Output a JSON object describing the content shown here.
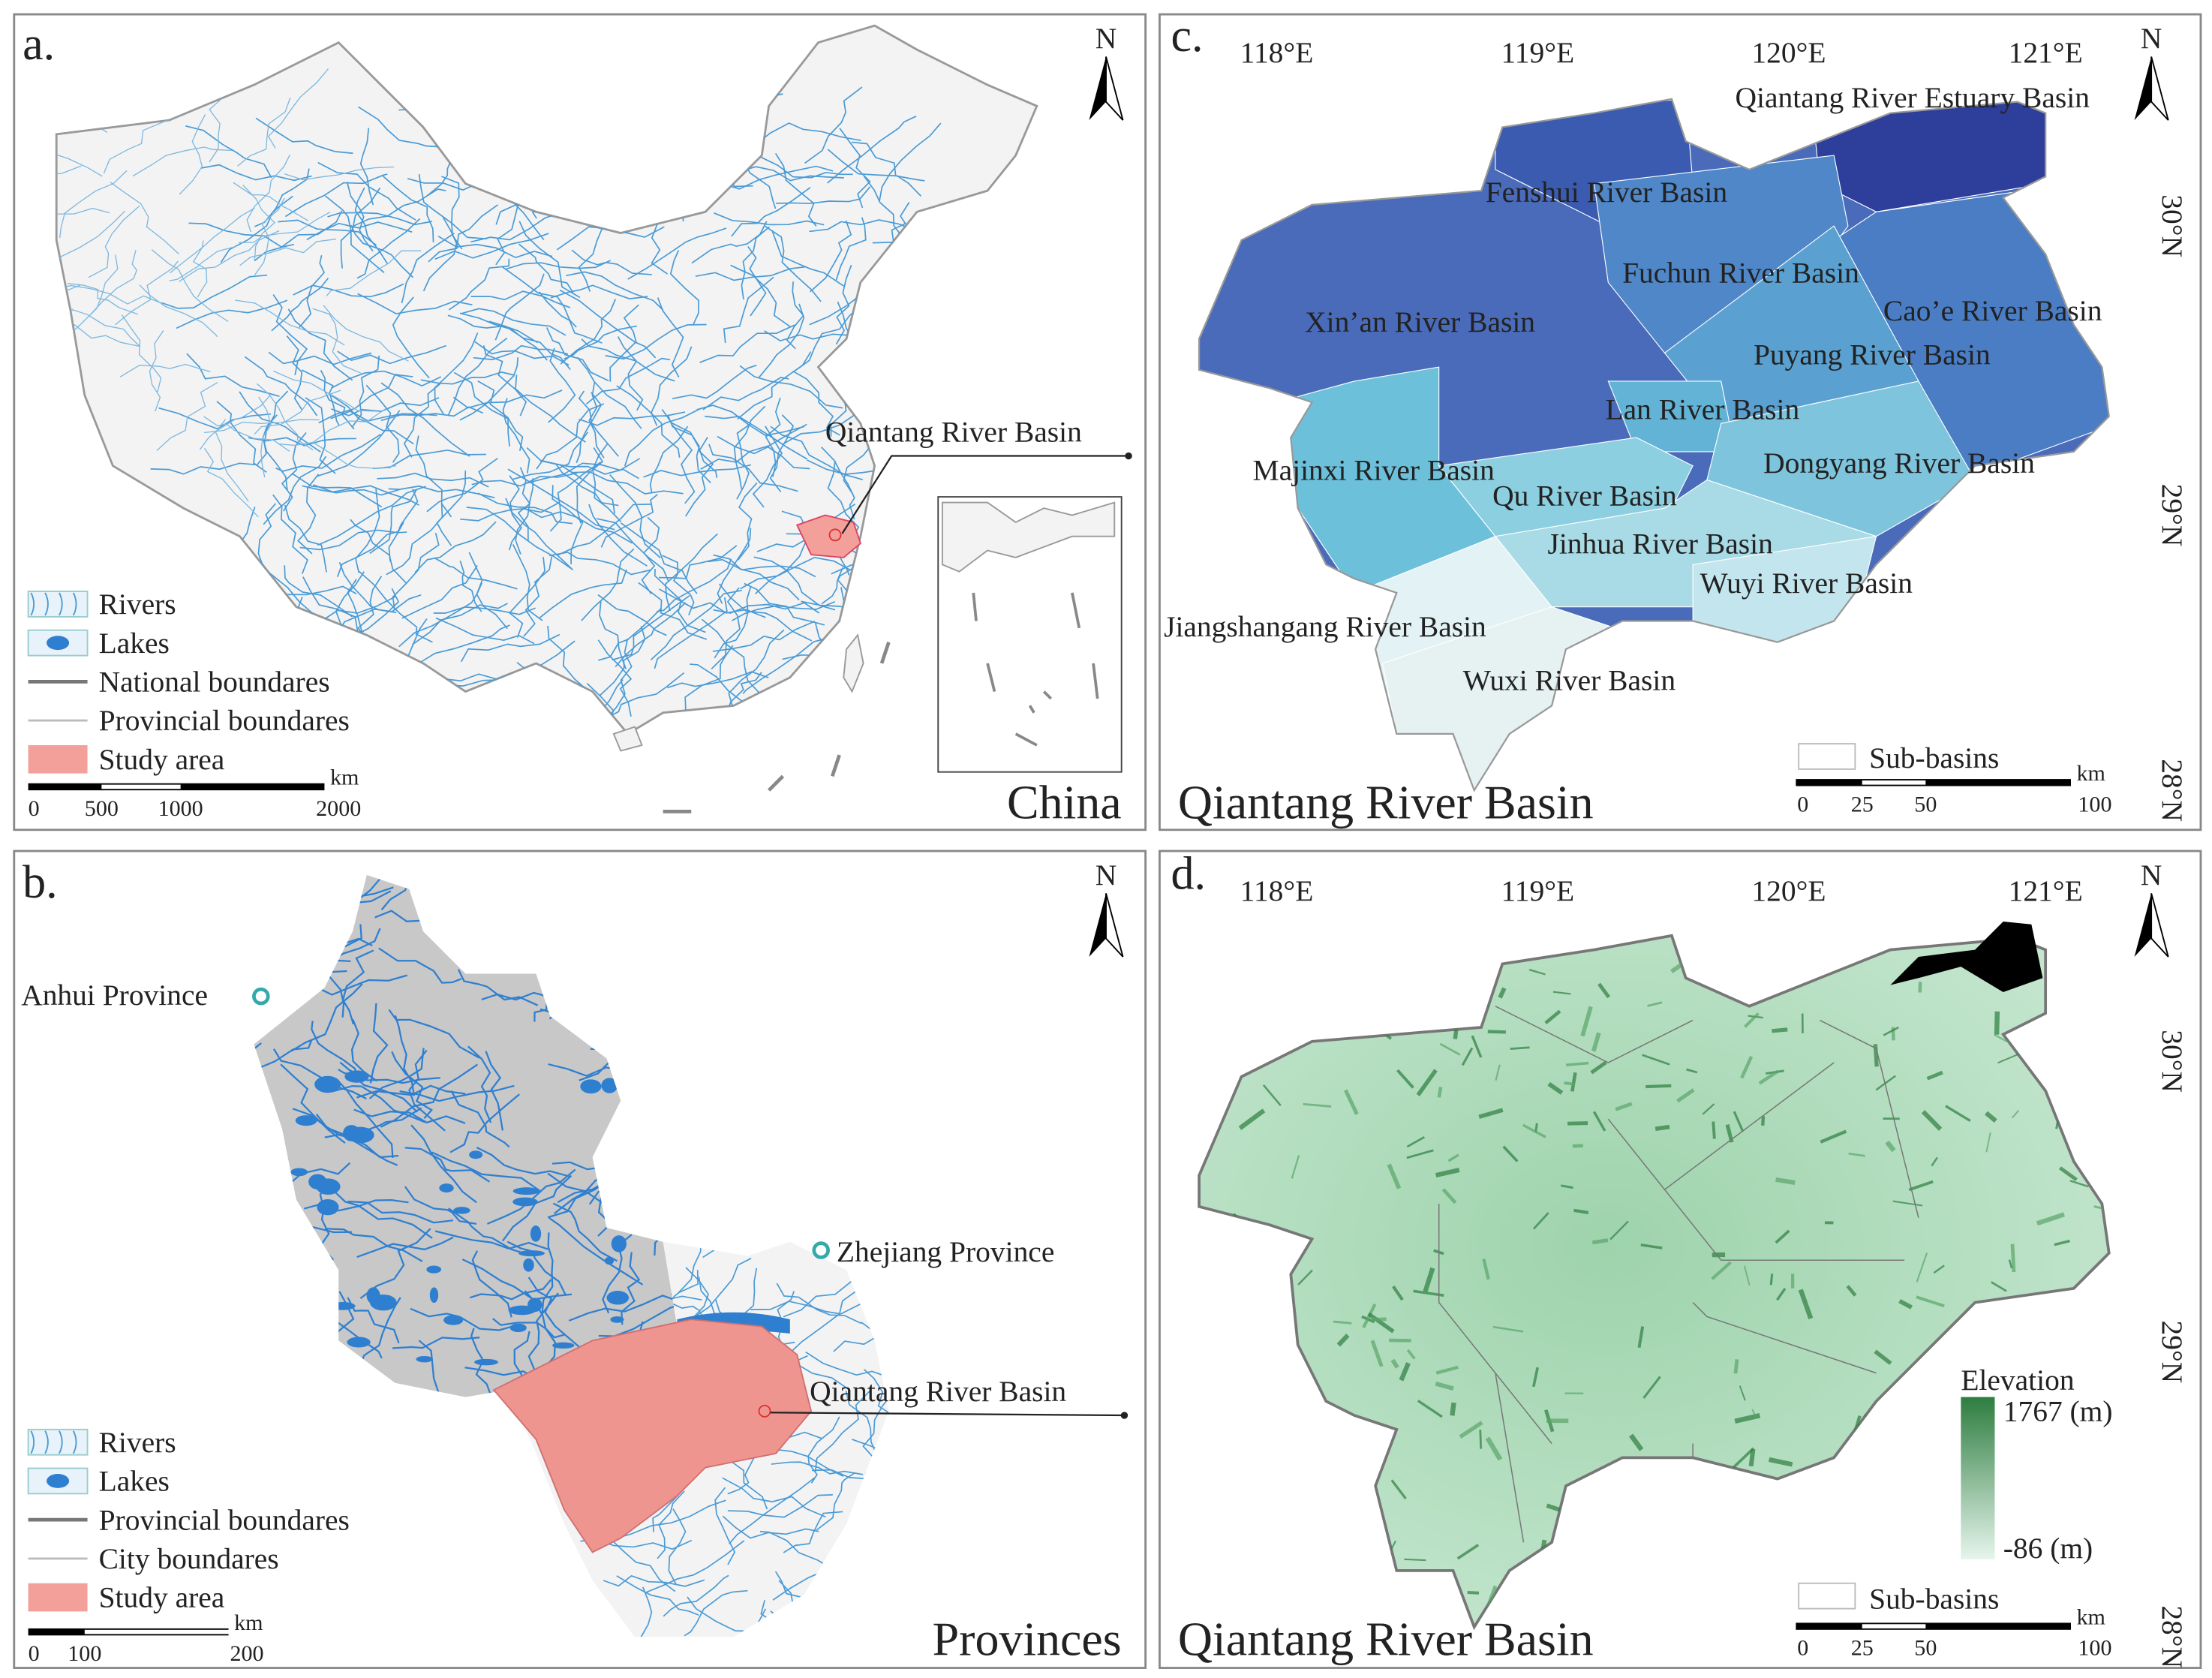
{
  "panels": {
    "a": {
      "label": "a.",
      "north": "N",
      "title": "China",
      "callout": "Qiantang River Basin",
      "legend": [
        "Rivers",
        "Lakes",
        "National boundares",
        "Provincial boundares",
        "Study area"
      ],
      "scale_bar": {
        "unit": "km",
        "ticks": [
          "0",
          "500",
          "1000",
          "2000"
        ]
      }
    },
    "b": {
      "label": "b.",
      "north": "N",
      "title": "Provinces",
      "places": [
        "Anhui Province",
        "Zhejiang Province"
      ],
      "callout": "Qiantang River Basin",
      "legend": [
        "Rivers",
        "Lakes",
        "Provincial boundares",
        "City boundares",
        "Study area"
      ],
      "scale_bar": {
        "unit": "km",
        "ticks": [
          "0",
          "100",
          "200"
        ]
      }
    },
    "c": {
      "label": "c.",
      "north": "N",
      "title": "Qiantang River Basin",
      "longitudes": [
        "118°E",
        "119°E",
        "120°E",
        "121°E"
      ],
      "latitudes": [
        "30°N",
        "29°N",
        "28°N"
      ],
      "sub_basins": [
        "Qiantang River Estuary Basin",
        "Fenshui River Basin",
        "Fuchun River Basin",
        "Cao’e River Basin",
        "Xin’an River Basin",
        "Puyang River Basin",
        "Lan River Basin",
        "Majinxi River Basin",
        "Dongyang River Basin",
        "Qu River Basin",
        "Jinhua River Basin",
        "Wuyi River Basin",
        "Jiangshangang River Basin",
        "Wuxi River Basin"
      ],
      "legend": [
        "Sub-basins"
      ],
      "scale_bar": {
        "unit": "km",
        "ticks": [
          "0",
          "25",
          "50",
          "100"
        ]
      }
    },
    "d": {
      "label": "d.",
      "north": "N",
      "title": "Qiantang River Basin",
      "longitudes": [
        "118°E",
        "119°E",
        "120°E",
        "121°E"
      ],
      "latitudes": [
        "30°N",
        "29°N",
        "28°N"
      ],
      "elevation": {
        "title": "Elevation",
        "max": "1767 (m)",
        "min": "-86 (m)"
      },
      "legend": [
        "Sub-basins"
      ],
      "scale_bar": {
        "unit": "km",
        "ticks": [
          "0",
          "25",
          "50",
          "100"
        ]
      }
    }
  }
}
